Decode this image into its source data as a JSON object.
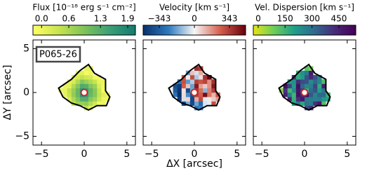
{
  "chart_data": [
    {
      "type": "map",
      "title": "Flux [10⁻¹⁸ erg s⁻¹ cm⁻²]",
      "clim": [
        -0.19,
        2.07
      ],
      "cticks": [
        {
          "value": 0,
          "label": "0.0"
        },
        0.6,
        1.3,
        1.9
      ],
      "colormap": [
        "#ffff66",
        "#c8e44e",
        "#7ec35a",
        "#3c9e78",
        "#137a6e"
      ],
      "xlim": [
        -6,
        6
      ],
      "ylim": [
        -6,
        6
      ],
      "xticks": [
        {
          "value": -5,
          "label": "−5"
        },
        0,
        5
      ],
      "yticks": [
        {
          "value": -5,
          "label": "−5"
        },
        0,
        5
      ],
      "show_yticklabels": true,
      "ylabel": "ΔY [arcsec]",
      "annotation": "P065-26"
    },
    {
      "type": "map",
      "title": "Velocity [km s⁻¹]",
      "clim": [
        -500,
        500
      ],
      "cticks": [
        {
          "value": -343,
          "label": "−343"
        },
        0,
        343
      ],
      "colormap": [
        "#08306b",
        "#2f7bbf",
        "#f7f7f7",
        "#d6604d",
        "#67000d"
      ],
      "xlim": [
        -6,
        6
      ],
      "ylim": [
        -6,
        6
      ],
      "xticks": [
        {
          "value": -5,
          "label": "−5"
        },
        0,
        5
      ],
      "yticks": [
        -5,
        0,
        5
      ],
      "show_yticklabels": false,
      "xlabel": "ΔX [arcsec]"
    },
    {
      "type": "map",
      "title": "Vel. Dispersion [km s⁻¹]",
      "clim": [
        -27,
        544
      ],
      "cticks": [
        0,
        150,
        300,
        450
      ],
      "colormap": [
        "#e6e619",
        "#6dcd59",
        "#1f9e89",
        "#31688e",
        "#482878",
        "#440154"
      ],
      "xlim": [
        -6,
        6
      ],
      "ylim": [
        -6,
        6
      ],
      "xticks": [
        {
          "value": -5,
          "label": "−5"
        },
        0,
        5
      ],
      "yticks": [
        -5,
        0,
        5
      ],
      "show_yticklabels": false
    }
  ]
}
